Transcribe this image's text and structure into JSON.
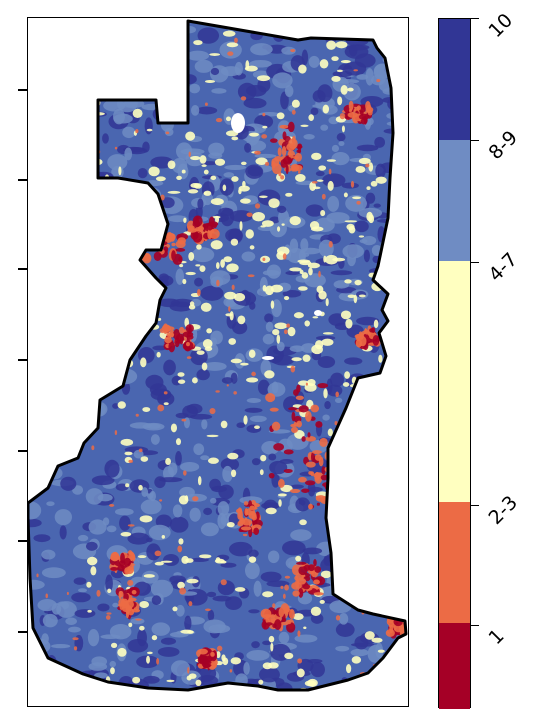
{
  "map": {
    "classes": [
      {
        "label": "10",
        "color": "#313695"
      },
      {
        "label": "8-9",
        "color": "#6f8cc3"
      },
      {
        "label": "4-7",
        "color": "#ffffc0"
      },
      {
        "label": "2-3",
        "color": "#ec6b45"
      },
      {
        "label": "1",
        "color": "#a50026"
      }
    ],
    "legend_fractions": [
      0.175,
      0.175,
      0.35,
      0.175,
      0.125
    ],
    "boundary_color": "#000000"
  }
}
